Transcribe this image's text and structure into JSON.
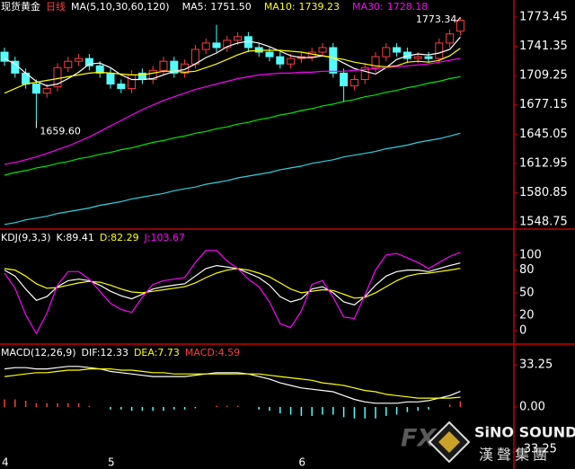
{
  "chart_data": [
    {
      "type": "candlestick",
      "title": "现货黄金",
      "period": "日线",
      "indicator": "MA(5,10,30,60,120)",
      "categories": [
        "4",
        null,
        null,
        null,
        null,
        null,
        null,
        null,
        null,
        null,
        "5",
        null,
        null,
        null,
        null,
        null,
        null,
        null,
        null,
        null,
        null,
        null,
        null,
        null,
        null,
        null,
        null,
        null,
        "6",
        null,
        null,
        null,
        null,
        null,
        null,
        null,
        null,
        null,
        null,
        null,
        null,
        null,
        null,
        null
      ],
      "open": [
        1735,
        1725,
        1712,
        1700,
        1690,
        1697,
        1718,
        1725,
        1728,
        1720,
        1712,
        1700,
        1695,
        1712,
        1705,
        1715,
        1725,
        1712,
        1722,
        1738,
        1745,
        1740,
        1748,
        1752,
        1740,
        1735,
        1730,
        1722,
        1728,
        1730,
        1735,
        1740,
        1712,
        1698,
        1705,
        1718,
        1730,
        1740,
        1735,
        1728,
        1730,
        1728,
        1745,
        1758
      ],
      "high": [
        1740,
        1730,
        1717,
        1705,
        1700,
        1723,
        1730,
        1733,
        1733,
        1725,
        1717,
        1705,
        1715,
        1717,
        1720,
        1730,
        1730,
        1727,
        1743,
        1750,
        1765,
        1753,
        1757,
        1757,
        1745,
        1740,
        1735,
        1733,
        1735,
        1740,
        1745,
        1745,
        1717,
        1710,
        1723,
        1735,
        1745,
        1745,
        1740,
        1735,
        1735,
        1750,
        1760,
        1773.34
      ],
      "low": [
        1720,
        1707,
        1695,
        1659.6,
        1685,
        1692,
        1713,
        1720,
        1715,
        1707,
        1695,
        1690,
        1690,
        1700,
        1700,
        1710,
        1707,
        1707,
        1717,
        1733,
        1735,
        1735,
        1743,
        1735,
        1730,
        1725,
        1717,
        1717,
        1723,
        1725,
        1730,
        1707,
        1680,
        1693,
        1700,
        1713,
        1725,
        1730,
        1723,
        1723,
        1723,
        1723,
        1740,
        1753
      ],
      "close": [
        1725,
        1712,
        1700,
        1690,
        1695,
        1718,
        1725,
        1728,
        1720,
        1712,
        1700,
        1695,
        1710,
        1705,
        1715,
        1725,
        1712,
        1722,
        1738,
        1745,
        1740,
        1748,
        1752,
        1740,
        1735,
        1730,
        1722,
        1728,
        1730,
        1735,
        1740,
        1712,
        1698,
        1705,
        1718,
        1730,
        1740,
        1735,
        1728,
        1730,
        1728,
        1745,
        1755,
        1770
      ],
      "up_color": "#ff3c3c",
      "down_color": "#54fcfc",
      "series": [
        {
          "name": "MA5:",
          "value_label": "1751.50",
          "color": "#ffffff",
          "values": [
            1728,
            1722,
            1712,
            1703,
            1698,
            1700,
            1706,
            1713,
            1722,
            1723,
            1718,
            1710,
            1705,
            1705,
            1706,
            1710,
            1714,
            1716,
            1722,
            1729,
            1734,
            1741,
            1745,
            1747,
            1745,
            1741,
            1736,
            1731,
            1729,
            1729,
            1731,
            1729,
            1723,
            1717,
            1714,
            1711,
            1718,
            1727,
            1731,
            1733,
            1732,
            1734,
            1738,
            1751.5
          ]
        },
        {
          "name": "MA10:",
          "value_label": "1739.23",
          "color": "#ffff00",
          "values": [
            1690,
            1695,
            1700,
            1702,
            1704,
            1706,
            1708,
            1710,
            1712,
            1713,
            1712,
            1711,
            1710,
            1710,
            1712,
            1714,
            1714,
            1713,
            1714,
            1718,
            1722,
            1727,
            1732,
            1736,
            1737,
            1737,
            1737,
            1736,
            1735,
            1733,
            1731,
            1729,
            1727,
            1724,
            1722,
            1720,
            1719,
            1720,
            1724,
            1725,
            1724,
            1726,
            1731,
            1739.23
          ]
        },
        {
          "name": "MA30:",
          "value_label": "1728.18",
          "color": "#ff00ff",
          "values": [
            1612,
            1614,
            1617,
            1620,
            1624,
            1628,
            1632,
            1637,
            1642,
            1648,
            1654,
            1660,
            1666,
            1672,
            1677,
            1682,
            1686,
            1690,
            1694,
            1697,
            1700,
            1703,
            1706,
            1708,
            1710,
            1711,
            1712,
            1712,
            1713,
            1713,
            1714,
            1714,
            1714,
            1715,
            1716,
            1717,
            1718,
            1719,
            1720,
            1721,
            1722,
            1724,
            1726,
            1728.18
          ]
        },
        {
          "color": "#00e600",
          "values": [
            1600,
            1603,
            1605,
            1608,
            1610,
            1613,
            1615,
            1618,
            1620,
            1623,
            1625,
            1628,
            1630,
            1633,
            1636,
            1638,
            1641,
            1643,
            1646,
            1648,
            1651,
            1653,
            1656,
            1658,
            1661,
            1663,
            1666,
            1668,
            1671,
            1673,
            1676,
            1678,
            1681,
            1683,
            1686,
            1688,
            1691,
            1693,
            1696,
            1698,
            1701,
            1703,
            1706,
            1708
          ]
        },
        {
          "color": "#2fd0e0",
          "values": [
            1546,
            1548,
            1551,
            1553,
            1555,
            1558,
            1560,
            1562,
            1564,
            1567,
            1569,
            1571,
            1574,
            1576,
            1578,
            1580,
            1583,
            1585,
            1587,
            1590,
            1592,
            1594,
            1597,
            1599,
            1601,
            1603,
            1606,
            1608,
            1610,
            1613,
            1615,
            1617,
            1620,
            1622,
            1624,
            1626,
            1629,
            1631,
            1633,
            1636,
            1638,
            1640,
            1643,
            1646
          ]
        }
      ],
      "annotations": [
        {
          "text": "1773.34",
          "value": 1773.34
        },
        {
          "text": "1659.60",
          "value": 1659.6
        }
      ],
      "ylim": [
        1541.85,
        1792.2
      ],
      "yticks": [
        1773.45,
        1741.35,
        1709.25,
        1677.15,
        1645.05,
        1612.95,
        1580.85,
        1548.75
      ]
    },
    {
      "type": "line",
      "title": "KDJ(9,3,3)",
      "series": [
        {
          "name": "K:",
          "value_label": "89.41",
          "color": "#ffffff",
          "values": [
            80,
            72,
            55,
            40,
            45,
            58,
            66,
            68,
            66,
            60,
            52,
            46,
            42,
            48,
            55,
            58,
            60,
            62,
            72,
            82,
            86,
            84,
            82,
            76,
            70,
            60,
            45,
            38,
            42,
            55,
            58,
            50,
            38,
            34,
            45,
            60,
            72,
            78,
            80,
            80,
            78,
            82,
            86,
            89.41
          ]
        },
        {
          "name": "D:",
          "value_label": "82.29",
          "color": "#ffff00",
          "values": [
            82,
            80,
            72,
            62,
            56,
            57,
            60,
            63,
            65,
            64,
            60,
            55,
            51,
            50,
            52,
            54,
            56,
            58,
            63,
            70,
            76,
            80,
            82,
            80,
            76,
            71,
            63,
            55,
            50,
            52,
            54,
            53,
            48,
            43,
            44,
            50,
            58,
            66,
            72,
            75,
            76,
            78,
            80,
            82.29
          ]
        },
        {
          "name": "J:",
          "value_label": "103.67",
          "color": "#ff00ff",
          "values": [
            76,
            56,
            21,
            -4,
            23,
            60,
            78,
            78,
            68,
            52,
            36,
            28,
            24,
            44,
            61,
            66,
            68,
            70,
            90,
            106,
            106,
            92,
            82,
            68,
            58,
            38,
            9,
            4,
            26,
            61,
            66,
            44,
            18,
            16,
            47,
            80,
            100,
            102,
            96,
            90,
            82,
            90,
            98,
            103.67
          ]
        }
      ],
      "ylim": [
        -16.7,
        133
      ],
      "yticks": [
        100,
        80,
        50,
        20,
        0
      ]
    },
    {
      "type": "macd",
      "title": "MACD(12,26,9)",
      "series": [
        {
          "name": "DIF:",
          "value_label": "12.33",
          "color": "#ffffff",
          "values": [
            30,
            31,
            31,
            30,
            30,
            31,
            32,
            32,
            31,
            30,
            28,
            27,
            26,
            25,
            24,
            24,
            24,
            24,
            25,
            26,
            27,
            27,
            27,
            26,
            24,
            22,
            19,
            17,
            15,
            14,
            13,
            12,
            9,
            6,
            4,
            3,
            3,
            3,
            4,
            4,
            5,
            7,
            9,
            12.33
          ]
        },
        {
          "name": "DEA:",
          "value_label": "7.73",
          "color": "#ffff00",
          "values": [
            24,
            25,
            26,
            27,
            27,
            28,
            29,
            29,
            30,
            30,
            30,
            29,
            29,
            28,
            27,
            27,
            26,
            26,
            26,
            26,
            26,
            26,
            26,
            26,
            26,
            25,
            24,
            23,
            22,
            21,
            19,
            18,
            17,
            15,
            13,
            12,
            10,
            9,
            8,
            7,
            7,
            7,
            7,
            7.73
          ]
        },
        {
          "name": "MACD:",
          "value_label": "4.59",
          "style": "histogram",
          "color": "#ff3c3c",
          "down_color": "#54fcfc",
          "values": [
            6,
            6,
            5,
            3,
            3,
            3,
            3,
            3,
            1,
            0,
            -2,
            -2,
            -3,
            -3,
            -3,
            -3,
            -2,
            -2,
            -1,
            0,
            1,
            1,
            1,
            0,
            -2,
            -3,
            -5,
            -6,
            -7,
            -7,
            -6,
            -6,
            -8,
            -9,
            -9,
            -9,
            -7,
            -6,
            -4,
            -3,
            -2,
            0,
            2,
            4.59
          ]
        }
      ],
      "ylim": [
        -48.8,
        48.8
      ],
      "yticks": [
        33.25,
        {
          "value": 0,
          "label": "0.00"
        },
        -33.25
      ]
    }
  ],
  "watermark": {
    "fx": "FX",
    "brand": "SiNO SOUND",
    "brand_cn": "漢聲集團"
  }
}
